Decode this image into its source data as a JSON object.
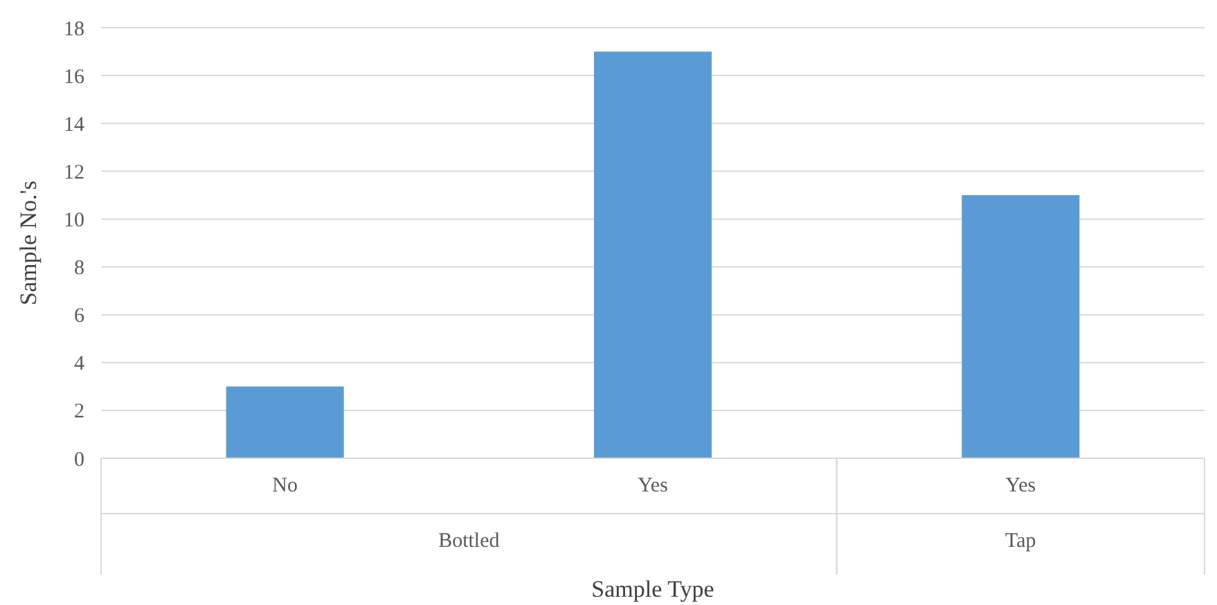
{
  "chart_data": {
    "type": "bar",
    "xlabel": "Sample Type",
    "ylabel": "Sample No.'s",
    "categories": [
      "No",
      "Yes",
      "Yes"
    ],
    "values": [
      3,
      17,
      11
    ],
    "color": "#5b9bd5",
    "ylim": [
      0,
      18
    ],
    "yticks": [
      0,
      2,
      4,
      6,
      8,
      10,
      12,
      14,
      16,
      18
    ],
    "grid": "y",
    "annotations": [
      "Bottled",
      "Tap"
    ]
  }
}
